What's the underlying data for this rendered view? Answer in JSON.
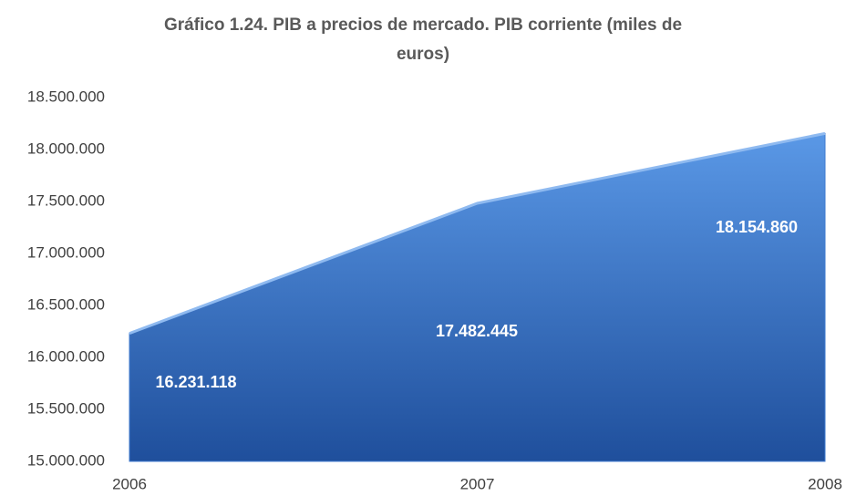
{
  "chart_data": {
    "type": "area",
    "title": "Gráfico 1.24. PIB a precios de mercado. PIB corriente (miles de euros)",
    "categories": [
      "2006",
      "2007",
      "2008"
    ],
    "values": [
      16231118,
      17482445,
      18154860
    ],
    "value_labels": [
      "16.231.118",
      "17.482.445",
      "18.154.860"
    ],
    "color": "#3f7bd0",
    "ylim": [
      15000000,
      18500000
    ],
    "yticks": [
      {
        "value": 15000000,
        "label": "15.000.000"
      },
      {
        "value": 15500000,
        "label": "15.500.000"
      },
      {
        "value": 16000000,
        "label": "16.000.000"
      },
      {
        "value": 16500000,
        "label": "16.500.000"
      },
      {
        "value": 17000000,
        "label": "17.000.000"
      },
      {
        "value": 17500000,
        "label": "17.500.000"
      },
      {
        "value": 18000000,
        "label": "18.000.000"
      },
      {
        "value": 18500000,
        "label": "18.500.000"
      }
    ],
    "grid": false
  }
}
